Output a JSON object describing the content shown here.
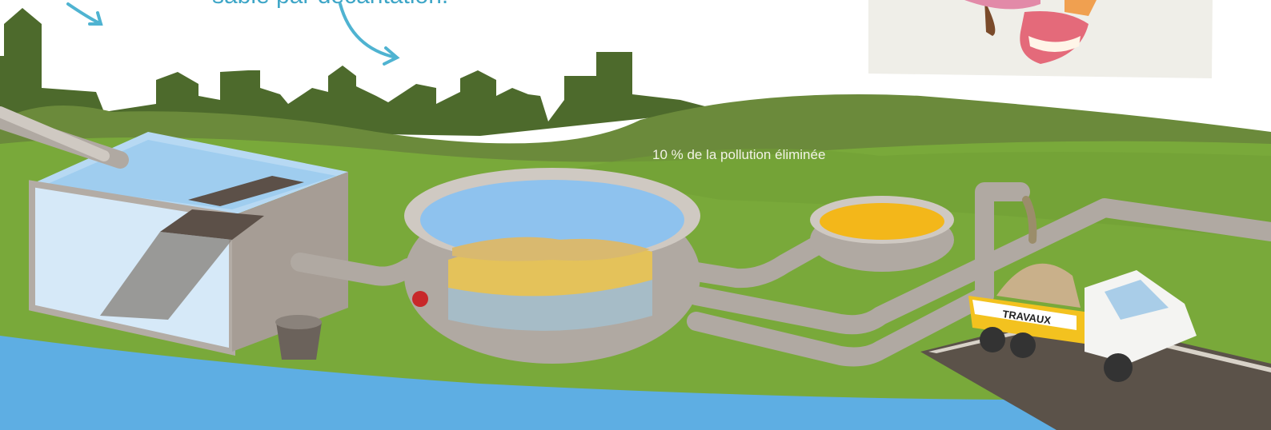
{
  "texts": {
    "top_caption": "sable par décantation.",
    "pollution_note": "10 % de la pollution éliminée",
    "truck_sign": "TRAVAUX"
  }
}
